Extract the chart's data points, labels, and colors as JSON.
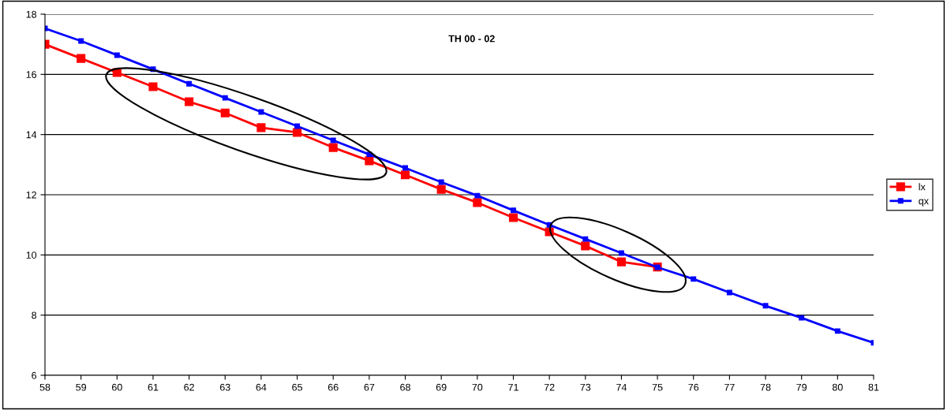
{
  "chart_data": {
    "type": "line",
    "title": "TH 00 - 02",
    "x": [
      58,
      59,
      60,
      61,
      62,
      63,
      64,
      65,
      66,
      67,
      68,
      69,
      70,
      71,
      72,
      73,
      74,
      75,
      76,
      77,
      78,
      79,
      80,
      81
    ],
    "series": [
      {
        "name": "lx",
        "color": "#ff0000",
        "values": [
          17.0,
          16.53,
          16.06,
          15.59,
          15.09,
          14.72,
          14.23,
          14.07,
          13.57,
          13.13,
          12.66,
          12.18,
          11.74,
          11.24,
          10.77,
          10.3,
          9.77,
          9.6,
          null,
          null,
          null,
          null,
          null,
          null
        ]
      },
      {
        "name": "qx",
        "color": "#0000ff",
        "values": [
          17.53,
          17.11,
          16.64,
          16.17,
          15.69,
          15.22,
          14.75,
          14.28,
          13.81,
          13.34,
          12.89,
          12.42,
          11.97,
          11.48,
          11.0,
          10.53,
          10.06,
          9.59,
          9.2,
          8.75,
          8.31,
          7.91,
          7.47,
          7.08
        ]
      }
    ],
    "xlim": [
      58,
      81
    ],
    "xticks": [
      58,
      59,
      60,
      61,
      62,
      63,
      64,
      65,
      66,
      67,
      68,
      69,
      70,
      71,
      72,
      73,
      74,
      75,
      76,
      77,
      78,
      79,
      80,
      81
    ],
    "ylim": [
      6,
      18
    ],
    "yticks": [
      6,
      8,
      10,
      12,
      14,
      16,
      18
    ],
    "grid": "y",
    "legend": "right",
    "marker": "square",
    "line_style": "solid"
  }
}
